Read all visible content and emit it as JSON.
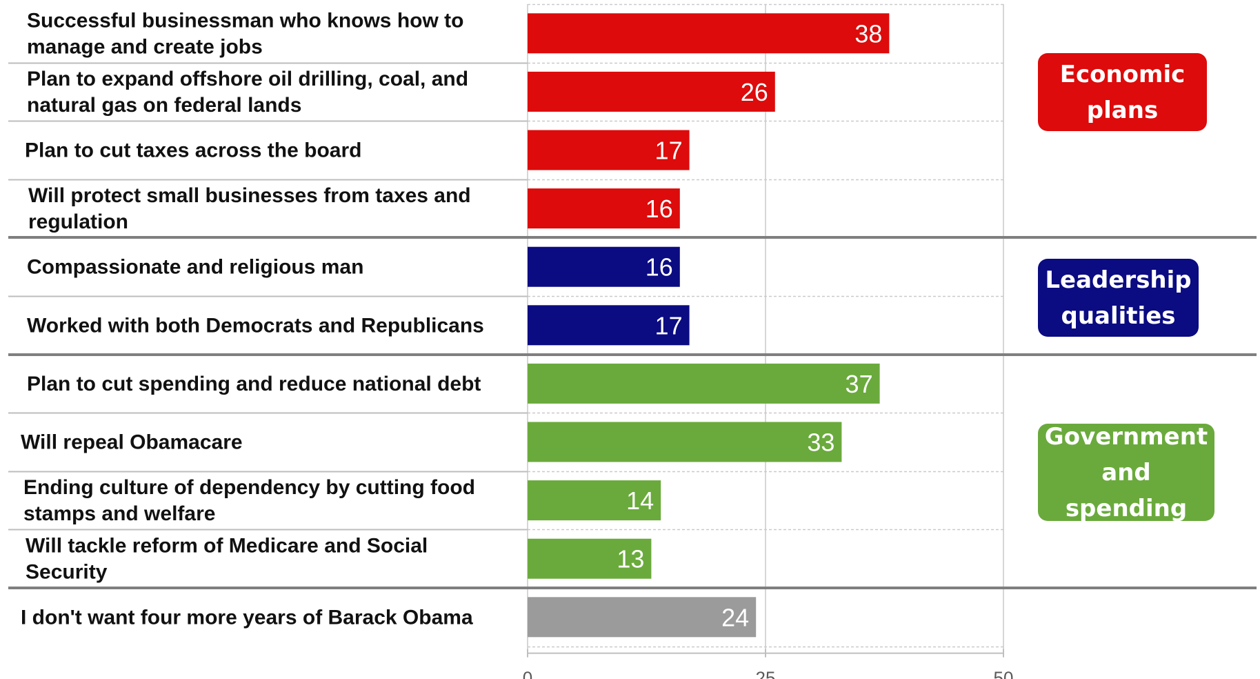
{
  "chart_data": {
    "type": "bar",
    "orientation": "horizontal",
    "xlim": [
      0,
      50
    ],
    "xticks": [
      "0",
      "25",
      "50"
    ],
    "grid": true,
    "categories": [
      [
        "Successful businessman who knows how to",
        "manage and create jobs"
      ],
      [
        "Plan to expand offshore oil drilling,  coal, and",
        "natural gas on federal lands"
      ],
      [
        "Plan to cut taxes across the board"
      ],
      [
        "Will protect small businesses from taxes and",
        "regulation"
      ],
      [
        "Compassionate and religious  man"
      ],
      [
        "Worked with both Democrats and Republicans"
      ],
      [
        "Plan to cut spending and reduce national debt"
      ],
      [
        "Will repeal Obamacare"
      ],
      [
        "Ending culture of dependency by cutting food",
        "stamps and welfare"
      ],
      [
        "Will tackle reform of Medicare and Social",
        "Security"
      ],
      [
        "I don't want four more years of Barack Obama"
      ]
    ],
    "values": [
      38,
      26,
      17,
      16,
      16,
      17,
      37,
      33,
      14,
      13,
      24
    ],
    "value_labels": [
      "38",
      "26",
      "17",
      "16",
      "16",
      "17",
      "37",
      "33",
      "14",
      "13",
      "24"
    ],
    "bar_colors": [
      "#dd0b0b",
      "#dd0b0b",
      "#dd0b0b",
      "#dd0b0b",
      "#0b0b82",
      "#0b0b82",
      "#6aaa3c",
      "#6aaa3c",
      "#6aaa3c",
      "#6aaa3c",
      "#9b9b9b"
    ],
    "groups": [
      {
        "lines": [
          "Economic",
          "plans"
        ],
        "color": "#dd0b0b"
      },
      {
        "lines": [
          "Leadership",
          "qualities"
        ],
        "color": "#0b0b82"
      },
      {
        "lines": [
          "Government",
          "and spending"
        ],
        "color": "#6aaa3c"
      }
    ]
  }
}
